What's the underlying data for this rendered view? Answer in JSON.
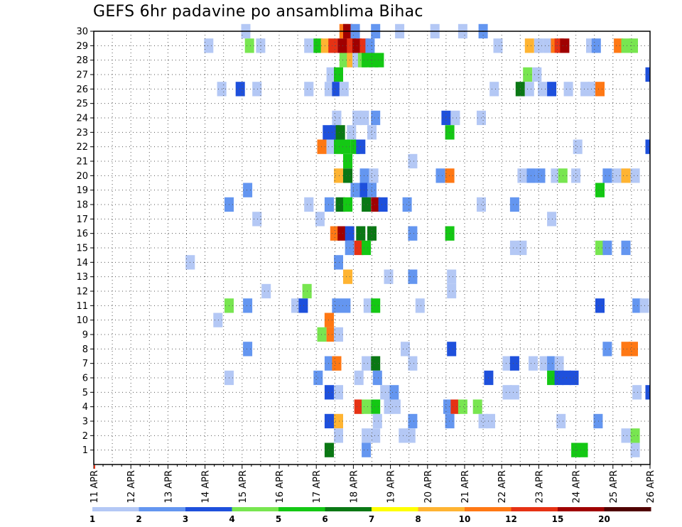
{
  "chart_data": {
    "type": "heatmap",
    "title": "GEFS 6hr padavine po ansamblima Bihac",
    "x_ticks": [
      "11 APR",
      "12 APR",
      "13 APR",
      "14 APR",
      "15 APR",
      "16 APR",
      "17 APR",
      "18 APR",
      "19 APR",
      "20 APR",
      "21 APR",
      "22 APR",
      "23 APR",
      "24 APR",
      "25 APR",
      "26 APR"
    ],
    "x_range_days": [
      11,
      26
    ],
    "time_step_hours": 6,
    "y_ticks": [
      1,
      2,
      3,
      4,
      5,
      6,
      7,
      8,
      9,
      10,
      11,
      12,
      13,
      14,
      15,
      16,
      17,
      18,
      19,
      20,
      21,
      22,
      23,
      24,
      25,
      26,
      27,
      28,
      29,
      30
    ],
    "y_range": [
      0,
      30
    ],
    "grid": "dotted",
    "legend": {
      "placement": "bottom",
      "labels": [
        "1",
        "2",
        "3",
        "4",
        "5",
        "6",
        "7",
        "8",
        "10",
        "12",
        "15",
        "20"
      ],
      "colors": [
        "#b4c8f5",
        "#6496f0",
        "#1e50dc",
        "#78e650",
        "#14c814",
        "#0a7814",
        "#ffff00",
        "#ffb432",
        "#ff7814",
        "#e63214",
        "#a00000",
        "#500000"
      ]
    },
    "cells": [
      [
        30,
        [
          [
            17.75,
            9
          ],
          [
            17.85,
            11
          ],
          [
            18.05,
            2
          ],
          [
            19.25,
            1
          ],
          [
            18.6,
            2
          ],
          [
            20.2,
            1
          ],
          [
            20.95,
            1
          ],
          [
            21.5,
            2
          ],
          [
            15.1,
            1
          ]
        ]
      ],
      [
        29,
        [
          [
            14.1,
            1
          ],
          [
            15.2,
            4
          ],
          [
            15.5,
            1
          ],
          [
            16.8,
            1
          ],
          [
            17.05,
            5
          ],
          [
            17.25,
            8
          ],
          [
            17.45,
            10
          ],
          [
            17.7,
            11
          ],
          [
            17.85,
            11
          ],
          [
            17.95,
            10
          ],
          [
            18.1,
            11
          ],
          [
            18.3,
            10
          ],
          [
            18.45,
            2
          ],
          [
            21.9,
            1
          ],
          [
            22.75,
            8
          ],
          [
            23.0,
            1
          ],
          [
            23.25,
            1
          ],
          [
            23.45,
            9
          ],
          [
            23.55,
            10
          ],
          [
            23.7,
            11
          ],
          [
            24.4,
            1
          ],
          [
            24.55,
            2
          ],
          [
            25.15,
            9
          ],
          [
            25.35,
            4
          ],
          [
            25.55,
            4
          ]
        ]
      ],
      [
        28,
        [
          [
            17.75,
            4
          ],
          [
            17.95,
            8
          ],
          [
            18.1,
            1
          ],
          [
            18.25,
            4
          ],
          [
            18.35,
            5
          ],
          [
            18.55,
            5
          ],
          [
            18.7,
            5
          ]
        ]
      ],
      [
        27,
        [
          [
            17.4,
            1
          ],
          [
            17.6,
            5
          ],
          [
            22.7,
            4
          ],
          [
            22.95,
            1
          ],
          [
            26.0,
            3
          ]
        ]
      ],
      [
        26,
        [
          [
            14.45,
            1
          ],
          [
            14.95,
            3
          ],
          [
            15.4,
            1
          ],
          [
            16.8,
            1
          ],
          [
            17.35,
            1
          ],
          [
            17.55,
            3
          ],
          [
            17.75,
            1
          ],
          [
            21.8,
            1
          ],
          [
            22.5,
            6
          ],
          [
            22.75,
            1
          ],
          [
            23.1,
            1
          ],
          [
            23.35,
            3
          ],
          [
            23.8,
            1
          ],
          [
            24.25,
            1
          ],
          [
            24.45,
            1
          ],
          [
            24.65,
            9
          ]
        ]
      ],
      [
        24,
        [
          [
            17.55,
            1
          ],
          [
            18.1,
            1
          ],
          [
            18.3,
            1
          ],
          [
            18.6,
            2
          ],
          [
            20.5,
            3
          ],
          [
            20.75,
            1
          ],
          [
            21.45,
            1
          ]
        ]
      ],
      [
        23,
        [
          [
            17.3,
            3
          ],
          [
            17.5,
            3
          ],
          [
            17.65,
            6
          ],
          [
            17.95,
            1
          ],
          [
            18.5,
            1
          ],
          [
            20.6,
            5
          ]
        ]
      ],
      [
        22,
        [
          [
            17.15,
            9
          ],
          [
            17.4,
            1
          ],
          [
            17.6,
            5
          ],
          [
            17.8,
            5
          ],
          [
            18.05,
            5
          ],
          [
            18.2,
            3
          ],
          [
            24.05,
            1
          ],
          [
            26.0,
            3
          ]
        ]
      ],
      [
        21,
        [
          [
            17.85,
            5
          ],
          [
            19.6,
            1
          ]
        ]
      ],
      [
        20,
        [
          [
            17.6,
            8
          ],
          [
            17.85,
            6
          ],
          [
            18.3,
            2
          ],
          [
            18.55,
            1
          ],
          [
            20.35,
            2
          ],
          [
            20.6,
            9
          ],
          [
            22.55,
            1
          ],
          [
            22.8,
            2
          ],
          [
            23.05,
            2
          ],
          [
            23.45,
            1
          ],
          [
            23.65,
            4
          ],
          [
            24.0,
            1
          ],
          [
            24.85,
            2
          ],
          [
            25.1,
            1
          ],
          [
            25.35,
            8
          ],
          [
            25.6,
            1
          ]
        ]
      ],
      [
        19,
        [
          [
            15.15,
            2
          ],
          [
            18.05,
            2
          ],
          [
            18.3,
            3
          ],
          [
            18.5,
            2
          ],
          [
            24.65,
            5
          ]
        ]
      ],
      [
        18,
        [
          [
            14.65,
            2
          ],
          [
            16.8,
            1
          ],
          [
            17.35,
            2
          ],
          [
            17.65,
            6
          ],
          [
            17.85,
            5
          ],
          [
            18.35,
            6
          ],
          [
            18.6,
            11
          ],
          [
            18.8,
            3
          ],
          [
            19.45,
            2
          ],
          [
            21.45,
            1
          ],
          [
            22.35,
            2
          ]
        ]
      ],
      [
        17,
        [
          [
            15.4,
            1
          ],
          [
            17.1,
            1
          ],
          [
            23.35,
            1
          ]
        ]
      ],
      [
        16,
        [
          [
            17.5,
            9
          ],
          [
            17.7,
            11
          ],
          [
            17.9,
            3
          ],
          [
            18.2,
            6
          ],
          [
            18.5,
            6
          ],
          [
            19.6,
            2
          ],
          [
            20.6,
            5
          ]
        ]
      ],
      [
        15,
        [
          [
            17.9,
            2
          ],
          [
            18.15,
            10
          ],
          [
            18.35,
            5
          ],
          [
            22.35,
            1
          ],
          [
            22.55,
            1
          ],
          [
            24.65,
            4
          ],
          [
            24.85,
            2
          ],
          [
            25.35,
            2
          ]
        ]
      ],
      [
        14,
        [
          [
            13.6,
            1
          ],
          [
            17.6,
            2
          ]
        ]
      ],
      [
        13,
        [
          [
            17.85,
            8
          ],
          [
            18.95,
            1
          ],
          [
            19.6,
            2
          ],
          [
            20.65,
            1
          ]
        ]
      ],
      [
        12,
        [
          [
            15.65,
            1
          ],
          [
            16.75,
            4
          ],
          [
            20.65,
            1
          ]
        ]
      ],
      [
        11,
        [
          [
            14.65,
            4
          ],
          [
            15.15,
            2
          ],
          [
            16.45,
            1
          ],
          [
            16.65,
            3
          ],
          [
            17.55,
            2
          ],
          [
            17.8,
            2
          ],
          [
            18.4,
            1
          ],
          [
            18.6,
            5
          ],
          [
            19.8,
            1
          ],
          [
            24.65,
            3
          ],
          [
            25.65,
            2
          ],
          [
            25.85,
            1
          ]
        ]
      ],
      [
        10,
        [
          [
            14.35,
            1
          ],
          [
            17.35,
            8
          ],
          [
            17.35,
            9
          ]
        ]
      ],
      [
        9,
        [
          [
            17.15,
            4
          ],
          [
            17.4,
            9
          ],
          [
            17.6,
            1
          ]
        ]
      ],
      [
        8,
        [
          [
            15.15,
            2
          ],
          [
            19.4,
            1
          ],
          [
            20.65,
            3
          ],
          [
            24.85,
            2
          ],
          [
            25.35,
            9
          ],
          [
            25.55,
            9
          ]
        ]
      ],
      [
        7,
        [
          [
            17.35,
            2
          ],
          [
            17.55,
            9
          ],
          [
            18.35,
            1
          ],
          [
            18.6,
            6
          ],
          [
            19.6,
            1
          ],
          [
            22.15,
            1
          ],
          [
            22.35,
            3
          ],
          [
            22.85,
            1
          ],
          [
            23.15,
            1
          ],
          [
            23.35,
            2
          ],
          [
            23.55,
            1
          ]
        ]
      ],
      [
        6,
        [
          [
            14.65,
            1
          ],
          [
            17.05,
            2
          ],
          [
            18.15,
            1
          ],
          [
            18.65,
            2
          ],
          [
            21.65,
            3
          ],
          [
            23.35,
            5
          ],
          [
            23.55,
            3
          ],
          [
            23.75,
            3
          ],
          [
            23.95,
            3
          ]
        ]
      ],
      [
        5,
        [
          [
            17.35,
            3
          ],
          [
            17.6,
            1
          ],
          [
            18.85,
            1
          ],
          [
            19.1,
            2
          ],
          [
            22.15,
            1
          ],
          [
            22.35,
            1
          ],
          [
            25.65,
            1
          ],
          [
            26.0,
            3
          ]
        ]
      ],
      [
        4,
        [
          [
            18.15,
            10
          ],
          [
            18.35,
            4
          ],
          [
            18.6,
            5
          ],
          [
            18.95,
            1
          ],
          [
            19.15,
            1
          ],
          [
            20.55,
            2
          ],
          [
            20.75,
            10
          ],
          [
            20.95,
            4
          ],
          [
            21.35,
            4
          ]
        ]
      ],
      [
        3,
        [
          [
            17.35,
            3
          ],
          [
            17.6,
            8
          ],
          [
            18.65,
            1
          ],
          [
            19.6,
            2
          ],
          [
            20.6,
            2
          ],
          [
            21.5,
            1
          ],
          [
            21.7,
            1
          ],
          [
            23.6,
            1
          ],
          [
            24.6,
            2
          ]
        ]
      ],
      [
        2,
        [
          [
            17.6,
            1
          ],
          [
            18.35,
            1
          ],
          [
            18.6,
            1
          ],
          [
            19.35,
            1
          ],
          [
            19.55,
            1
          ],
          [
            25.35,
            1
          ],
          [
            25.6,
            4
          ]
        ]
      ],
      [
        1,
        [
          [
            17.35,
            6
          ],
          [
            18.35,
            2
          ],
          [
            24.0,
            5
          ],
          [
            24.2,
            5
          ],
          [
            25.6,
            1
          ]
        ]
      ]
    ]
  }
}
